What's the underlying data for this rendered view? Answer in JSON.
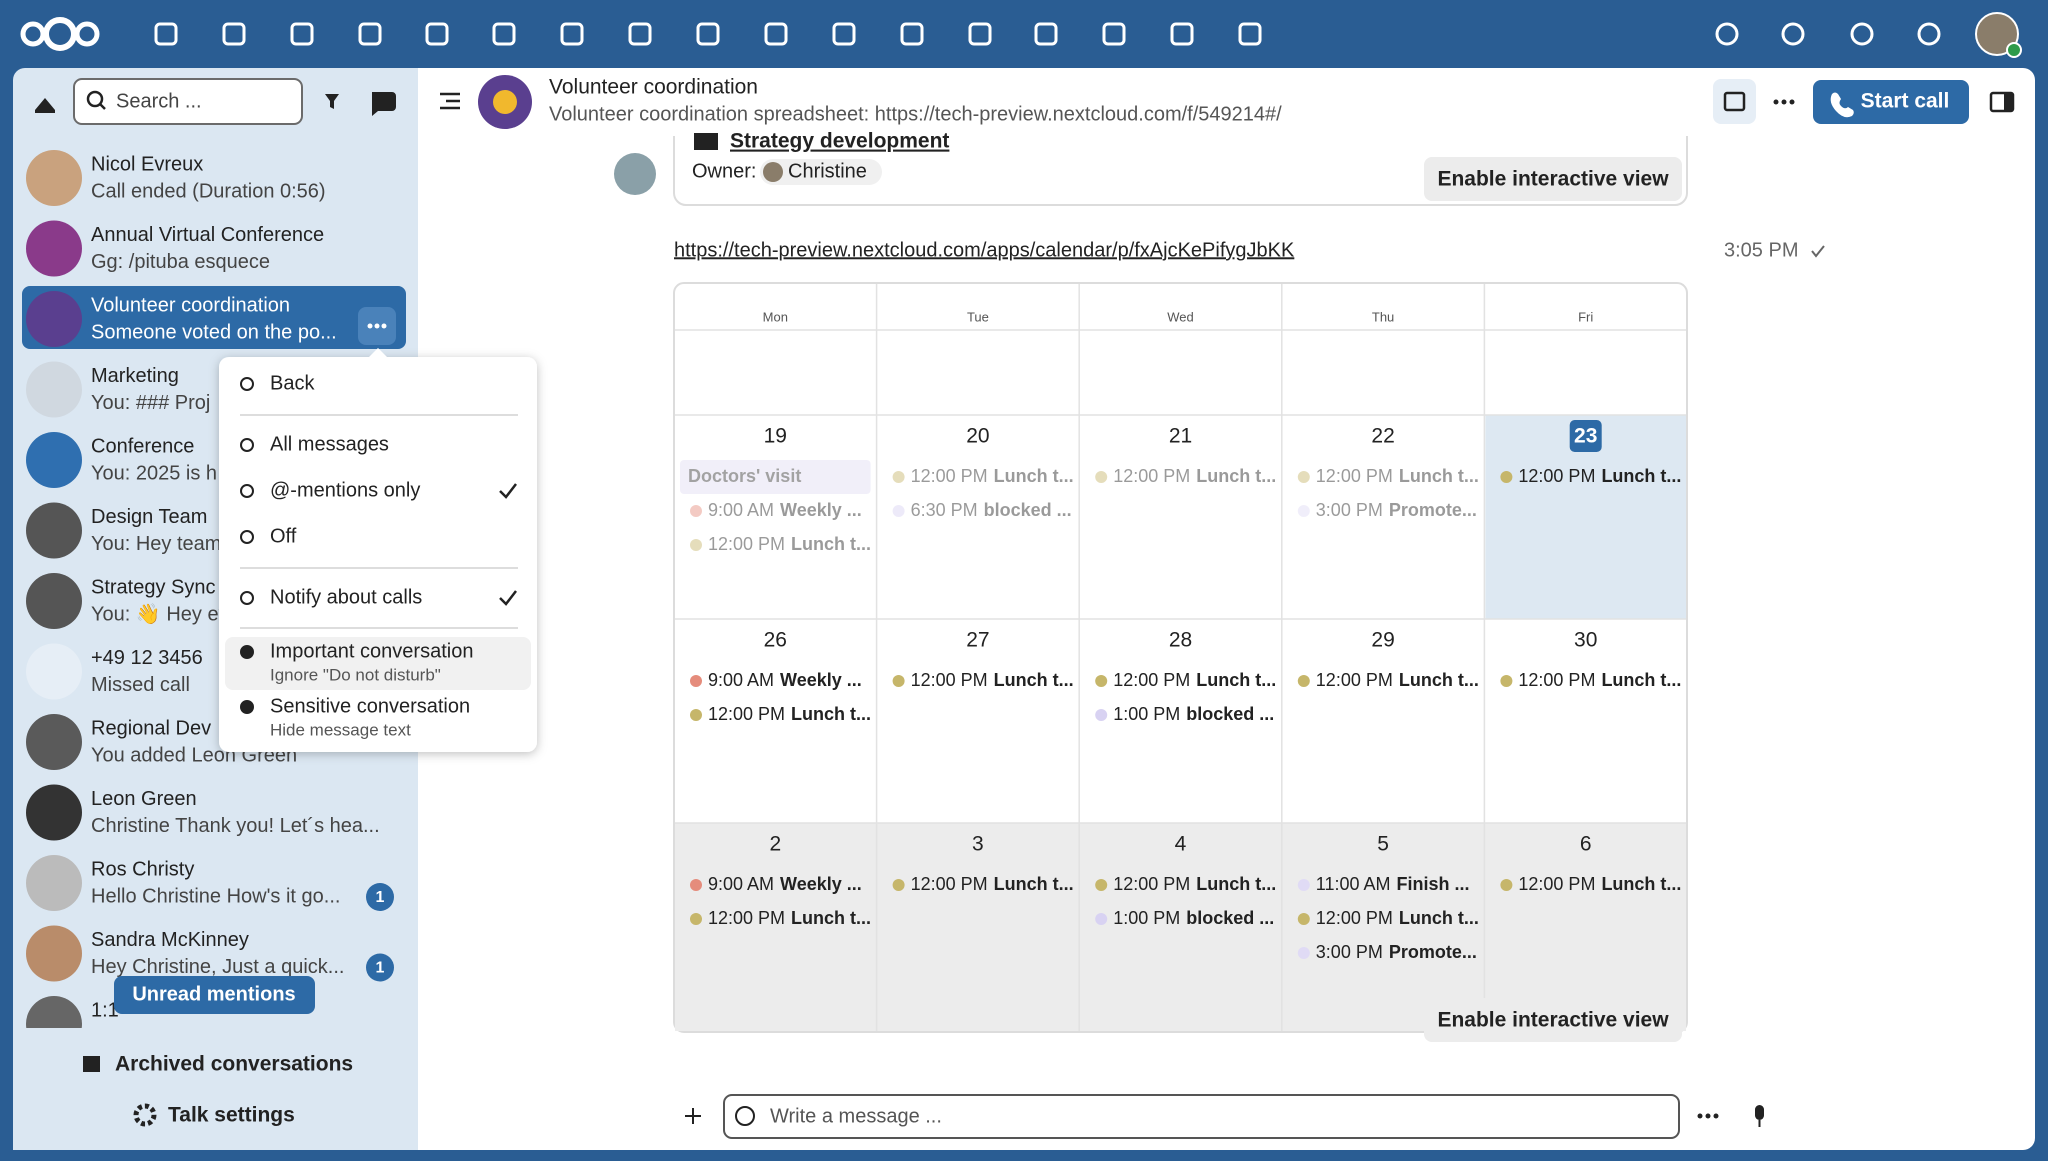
{
  "sidebar": {
    "search_placeholder": "Search ...",
    "conversations": [
      {
        "name": "Nicol Evreux",
        "preview": "Call ended (Duration 0:56)"
      },
      {
        "name": "Annual Virtual Conference",
        "preview": "Gg: /pituba esquece"
      },
      {
        "name": "Volunteer coordination",
        "preview": "Someone voted on the po...",
        "selected": true
      },
      {
        "name": "Marketing",
        "preview": "You: ### Proj"
      },
      {
        "name": "Conference",
        "preview": "You: 2025 is h"
      },
      {
        "name": "Design Team",
        "preview": "You: Hey team"
      },
      {
        "name": "Strategy Sync",
        "preview": "You: 👋 Hey ev"
      },
      {
        "name": "+49 12 3456",
        "preview": "Missed call"
      },
      {
        "name": "Regional Dev",
        "preview": "You added Leon Green"
      },
      {
        "name": "Leon Green",
        "preview": "Christine Thank you! Let´s hea..."
      },
      {
        "name": "Ros Christy",
        "preview": "Hello Christine How's it go...",
        "badge": 1
      },
      {
        "name": "Sandra McKinney",
        "preview": "Hey Christine, Just a quick...",
        "badge": 1
      },
      {
        "name": "1:1"
      }
    ],
    "unread_mentions": "Unread mentions",
    "archived": "Archived conversations",
    "settings": "Talk settings"
  },
  "menu": {
    "items": [
      {
        "label": "Back"
      },
      {
        "label": "All messages"
      },
      {
        "label": "@-mentions only",
        "checked": true
      },
      {
        "label": "Off"
      },
      {
        "label": "Notify about calls",
        "checked": true
      },
      {
        "label": "Important conversation",
        "description": "Ignore \"Do not disturb\""
      },
      {
        "label": "Sensitive conversation",
        "description": "Hide message text"
      }
    ]
  },
  "header": {
    "title": "Volunteer coordination",
    "subtitle": "Volunteer coordination spreadsheet: https://tech-preview.nextcloud.com/f/549214#/",
    "start_call": "Start call"
  },
  "chat": {
    "card": {
      "title": "Strategy development",
      "owner_label": "Owner:",
      "owner": "Christine",
      "button": "Enable interactive view"
    },
    "link": "https://tech-preview.nextcloud.com/apps/calendar/p/fxAjcKePifygJbKK",
    "time": "3:05 PM",
    "calendar": {
      "weekdays": [
        "Mon",
        "Tue",
        "Wed",
        "Thu",
        "Fri"
      ],
      "weeks": [
        [
          {
            "day": 19,
            "events": [
              {
                "title": "Doctors' visit",
                "all_day": true
              },
              {
                "time": "9:00 AM",
                "title": "Weekly ...",
                "color": "#e58c7c"
              },
              {
                "time": "12:00 PM",
                "title": "Lunch t...",
                "color": "#c6b66a"
              }
            ]
          },
          {
            "day": 20,
            "events": [
              {
                "time": "12:00 PM",
                "title": "Lunch t...",
                "color": "#c6b66a"
              },
              {
                "time": "6:30 PM",
                "title": "blocked ...",
                "color": "#d8d2f2"
              }
            ]
          },
          {
            "day": 21,
            "events": [
              {
                "time": "12:00 PM",
                "title": "Lunch t...",
                "color": "#c6b66a"
              }
            ]
          },
          {
            "day": 22,
            "events": [
              {
                "time": "12:00 PM",
                "title": "Lunch t...",
                "color": "#c6b66a"
              },
              {
                "time": "3:00 PM",
                "title": "Promote...",
                "color": "#e0dbf5"
              }
            ]
          },
          {
            "day": 23,
            "today": true,
            "events": [
              {
                "time": "12:00 PM",
                "title": "Lunch t...",
                "color": "#c6b66a"
              }
            ]
          }
        ],
        [
          {
            "day": 26,
            "events": [
              {
                "time": "9:00 AM",
                "title": "Weekly ...",
                "color": "#e58c7c"
              },
              {
                "time": "12:00 PM",
                "title": "Lunch t...",
                "color": "#c6b66a"
              }
            ]
          },
          {
            "day": 27,
            "events": [
              {
                "time": "12:00 PM",
                "title": "Lunch t...",
                "color": "#c6b66a"
              }
            ]
          },
          {
            "day": 28,
            "events": [
              {
                "time": "12:00 PM",
                "title": "Lunch t...",
                "color": "#c6b66a"
              },
              {
                "time": "1:00 PM",
                "title": "blocked ...",
                "color": "#d8d2f2"
              }
            ]
          },
          {
            "day": 29,
            "events": [
              {
                "time": "12:00 PM",
                "title": "Lunch t...",
                "color": "#c6b66a"
              }
            ]
          },
          {
            "day": 30,
            "events": [
              {
                "time": "12:00 PM",
                "title": "Lunch t...",
                "color": "#c6b66a"
              }
            ]
          }
        ],
        [
          {
            "day": 2,
            "events": [
              {
                "time": "9:00 AM",
                "title": "Weekly ...",
                "color": "#e58c7c"
              },
              {
                "time": "12:00 PM",
                "title": "Lunch t...",
                "color": "#c6b66a"
              }
            ]
          },
          {
            "day": 3,
            "events": [
              {
                "time": "12:00 PM",
                "title": "Lunch t...",
                "color": "#c6b66a"
              }
            ]
          },
          {
            "day": 4,
            "events": [
              {
                "time": "12:00 PM",
                "title": "Lunch t...",
                "color": "#c6b66a"
              },
              {
                "time": "1:00 PM",
                "title": "blocked ...",
                "color": "#d8d2f2"
              }
            ]
          },
          {
            "day": 5,
            "events": [
              {
                "time": "11:00 AM",
                "title": "Finish ...",
                "color": "#e0dbf5"
              },
              {
                "time": "12:00 PM",
                "title": "Lunch t...",
                "color": "#c6b66a"
              },
              {
                "time": "3:00 PM",
                "title": "Promote...",
                "color": "#e0dbf5"
              }
            ]
          },
          {
            "day": 6,
            "events": [
              {
                "time": "12:00 PM",
                "title": "Lunch t...",
                "color": "#c6b66a"
              }
            ]
          }
        ]
      ],
      "button": "Enable interactive view"
    }
  },
  "composer": {
    "placeholder": "Write a message ..."
  }
}
